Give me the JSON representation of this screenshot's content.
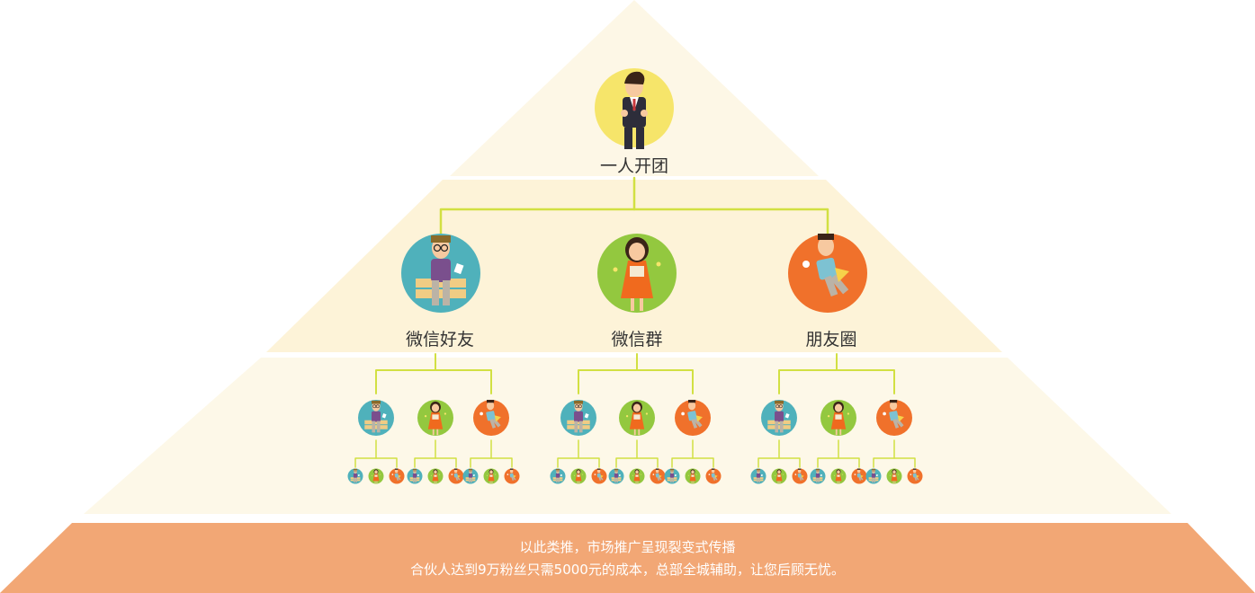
{
  "diagram": {
    "root": {
      "label": "一人开团",
      "figure": "businessman"
    },
    "level2": [
      {
        "label": "微信好友",
        "figure": "glasses-man"
      },
      {
        "label": "微信群",
        "figure": "woman"
      },
      {
        "label": "朋友圈",
        "figure": "flying-man"
      }
    ]
  },
  "footer": {
    "line1": "以此类推，市场推广呈现裂变式传播",
    "line2": "合伙人达到9万粉丝只需5000元的成本，总部全城辅助，让您后顾无忧。"
  },
  "colors": {
    "apex": "#fdf7e6",
    "band_middle": "#fdf3d8",
    "band_lower": "#fdf8e8",
    "base": "#f2a775",
    "connector": "#d2e042",
    "circle_yellow": "#f6e56a",
    "circle_teal": "#4fb1bb",
    "circle_green": "#93c83f",
    "circle_orange": "#f0712b"
  }
}
